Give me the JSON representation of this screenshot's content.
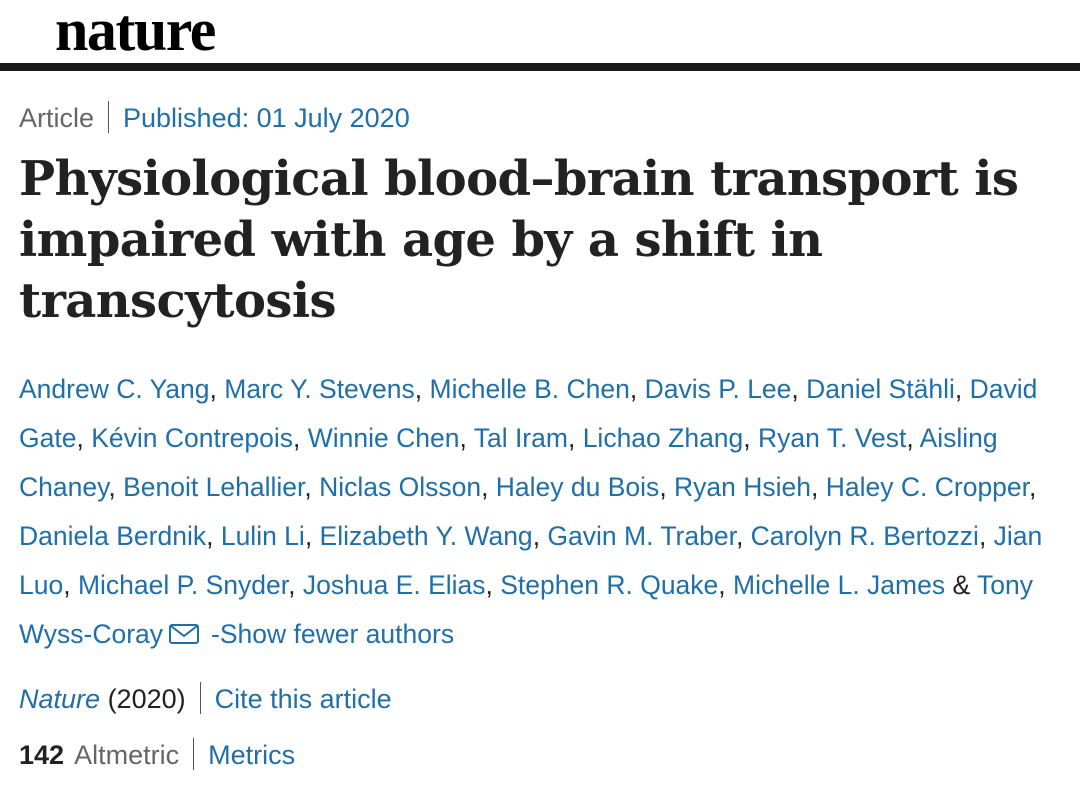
{
  "header": {
    "logo": "nature"
  },
  "meta": {
    "type": "Article",
    "published": "Published: 01 July 2020"
  },
  "title": "Physiological blood–brain transport is impaired with age by a shift in transcytosis",
  "authors": [
    "Andrew C. Yang",
    "Marc Y. Stevens",
    "Michelle B. Chen",
    "Davis P. Lee",
    "Daniel Stähli",
    "David Gate",
    "Kévin Contrepois",
    "Winnie Chen",
    "Tal Iram",
    "Lichao Zhang",
    "Ryan T. Vest",
    "Aisling Chaney",
    "Benoit Lehallier",
    "Niclas Olsson",
    "Haley du Bois",
    "Ryan Hsieh",
    "Haley C. Cropper",
    "Daniela Berdnik",
    "Lulin Li",
    "Elizabeth Y. Wang",
    "Gavin M. Traber",
    "Carolyn R. Bertozzi",
    "Jian Luo",
    "Michael P. Snyder",
    "Joshua E. Elias",
    "Stephen R. Quake",
    "Michelle L. James"
  ],
  "last_author": "Tony Wyss-Coray",
  "ampersand": "&",
  "mail_icon": "envelope-icon",
  "show_fewer": "-Show fewer authors",
  "citation": {
    "journal": "Nature",
    "year": "(2020)",
    "cite": "Cite this article"
  },
  "metrics": {
    "count": "142",
    "altmetric": "Altmetric",
    "link": "Metrics"
  },
  "colors": {
    "link": "#1f6fa8",
    "text": "#222222",
    "muted": "#666666",
    "rule": "#1a1a1a"
  }
}
